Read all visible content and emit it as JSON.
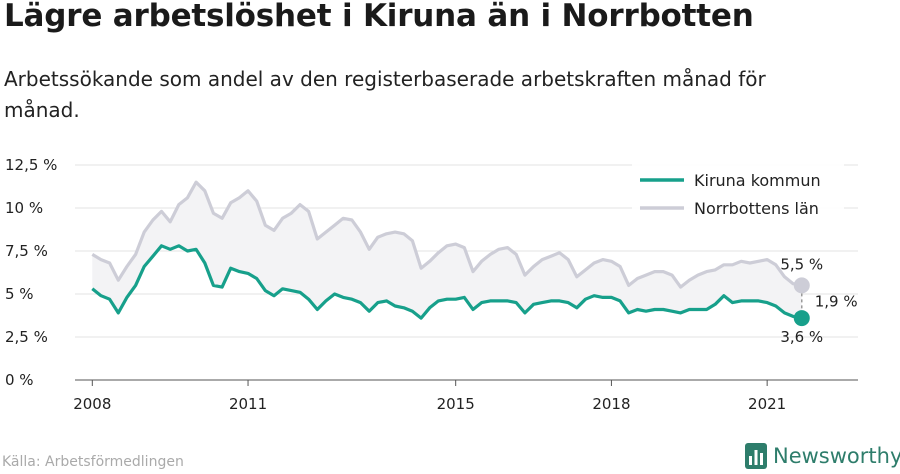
{
  "title": "Lägre arbetslöshet i Kiruna än i Norrbotten",
  "subtitle": "Arbetssökande som andel av den registerbaserade arbetskraften månad för månad.",
  "source": "Källa: Arbetsförmedlingen",
  "brand": "Newsworthy",
  "colors": {
    "kiruna": "#17a08b",
    "norrbotten": "#cdcdd7",
    "gapFill": "#f3f3f5",
    "grid": "#e3e3e3"
  },
  "chart_data": {
    "type": "line",
    "xlabel": "",
    "ylabel": "",
    "ylim": [
      0,
      12.5
    ],
    "xlim": [
      "2007-09",
      "2022-10"
    ],
    "yticks": [
      {
        "value": 0,
        "label": "0 %"
      },
      {
        "value": 2.5,
        "label": "2,5 %"
      },
      {
        "value": 5,
        "label": "5 %"
      },
      {
        "value": 7.5,
        "label": "7,5 %"
      },
      {
        "value": 10,
        "label": "10 %"
      },
      {
        "value": 12.5,
        "label": "12,5 %"
      }
    ],
    "xticks": [
      {
        "value": "2008-01",
        "label": "2008"
      },
      {
        "value": "2011-01",
        "label": "2011"
      },
      {
        "value": "2015-01",
        "label": "2015"
      },
      {
        "value": "2018-01",
        "label": "2018"
      },
      {
        "value": "2021-01",
        "label": "2021"
      }
    ],
    "grid": true,
    "legend_position": "top-right",
    "gap_label": "1,9 %",
    "series": [
      {
        "name": "Kiruna kommun",
        "end_label": "3,6 %",
        "points": [
          [
            "2008-01",
            5.3
          ],
          [
            "2008-03",
            4.9
          ],
          [
            "2008-05",
            4.7
          ],
          [
            "2008-07",
            3.9
          ],
          [
            "2008-09",
            4.8
          ],
          [
            "2008-11",
            5.5
          ],
          [
            "2009-01",
            6.6
          ],
          [
            "2009-03",
            7.2
          ],
          [
            "2009-05",
            7.8
          ],
          [
            "2009-07",
            7.6
          ],
          [
            "2009-09",
            7.8
          ],
          [
            "2009-11",
            7.5
          ],
          [
            "2010-01",
            7.6
          ],
          [
            "2010-03",
            6.8
          ],
          [
            "2010-05",
            5.5
          ],
          [
            "2010-07",
            5.4
          ],
          [
            "2010-09",
            6.5
          ],
          [
            "2010-11",
            6.3
          ],
          [
            "2011-01",
            6.2
          ],
          [
            "2011-03",
            5.9
          ],
          [
            "2011-05",
            5.2
          ],
          [
            "2011-07",
            4.9
          ],
          [
            "2011-09",
            5.3
          ],
          [
            "2011-11",
            5.2
          ],
          [
            "2012-01",
            5.1
          ],
          [
            "2012-03",
            4.7
          ],
          [
            "2012-05",
            4.1
          ],
          [
            "2012-07",
            4.6
          ],
          [
            "2012-09",
            5.0
          ],
          [
            "2012-11",
            4.8
          ],
          [
            "2013-01",
            4.7
          ],
          [
            "2013-03",
            4.5
          ],
          [
            "2013-05",
            4.0
          ],
          [
            "2013-07",
            4.5
          ],
          [
            "2013-09",
            4.6
          ],
          [
            "2013-11",
            4.3
          ],
          [
            "2014-01",
            4.2
          ],
          [
            "2014-03",
            4.0
          ],
          [
            "2014-05",
            3.6
          ],
          [
            "2014-07",
            4.2
          ],
          [
            "2014-09",
            4.6
          ],
          [
            "2014-11",
            4.7
          ],
          [
            "2015-01",
            4.7
          ],
          [
            "2015-03",
            4.8
          ],
          [
            "2015-05",
            4.1
          ],
          [
            "2015-07",
            4.5
          ],
          [
            "2015-09",
            4.6
          ],
          [
            "2015-11",
            4.6
          ],
          [
            "2016-01",
            4.6
          ],
          [
            "2016-03",
            4.5
          ],
          [
            "2016-05",
            3.9
          ],
          [
            "2016-07",
            4.4
          ],
          [
            "2016-09",
            4.5
          ],
          [
            "2016-11",
            4.6
          ],
          [
            "2017-01",
            4.6
          ],
          [
            "2017-03",
            4.5
          ],
          [
            "2017-05",
            4.2
          ],
          [
            "2017-07",
            4.7
          ],
          [
            "2017-09",
            4.9
          ],
          [
            "2017-11",
            4.8
          ],
          [
            "2018-01",
            4.8
          ],
          [
            "2018-03",
            4.6
          ],
          [
            "2018-05",
            3.9
          ],
          [
            "2018-07",
            4.1
          ],
          [
            "2018-09",
            4.0
          ],
          [
            "2018-11",
            4.1
          ],
          [
            "2019-01",
            4.1
          ],
          [
            "2019-03",
            4.0
          ],
          [
            "2019-05",
            3.9
          ],
          [
            "2019-07",
            4.1
          ],
          [
            "2019-09",
            4.1
          ],
          [
            "2019-11",
            4.1
          ],
          [
            "2020-01",
            4.4
          ],
          [
            "2020-03",
            4.9
          ],
          [
            "2020-05",
            4.5
          ],
          [
            "2020-07",
            4.6
          ],
          [
            "2020-09",
            4.6
          ],
          [
            "2020-11",
            4.6
          ],
          [
            "2021-01",
            4.5
          ],
          [
            "2021-03",
            4.3
          ],
          [
            "2021-05",
            3.9
          ],
          [
            "2021-07",
            3.7
          ],
          [
            "2021-09",
            3.6
          ]
        ]
      },
      {
        "name": "Norrbottens län",
        "end_label": "5,5 %",
        "points": [
          [
            "2008-01",
            7.3
          ],
          [
            "2008-03",
            7.0
          ],
          [
            "2008-05",
            6.8
          ],
          [
            "2008-07",
            5.8
          ],
          [
            "2008-09",
            6.6
          ],
          [
            "2008-11",
            7.3
          ],
          [
            "2009-01",
            8.6
          ],
          [
            "2009-03",
            9.3
          ],
          [
            "2009-05",
            9.8
          ],
          [
            "2009-07",
            9.2
          ],
          [
            "2009-09",
            10.2
          ],
          [
            "2009-11",
            10.6
          ],
          [
            "2010-01",
            11.5
          ],
          [
            "2010-03",
            11.0
          ],
          [
            "2010-05",
            9.7
          ],
          [
            "2010-07",
            9.4
          ],
          [
            "2010-09",
            10.3
          ],
          [
            "2010-11",
            10.6
          ],
          [
            "2011-01",
            11.0
          ],
          [
            "2011-03",
            10.4
          ],
          [
            "2011-05",
            9.0
          ],
          [
            "2011-07",
            8.7
          ],
          [
            "2011-09",
            9.4
          ],
          [
            "2011-11",
            9.7
          ],
          [
            "2012-01",
            10.2
          ],
          [
            "2012-03",
            9.8
          ],
          [
            "2012-05",
            8.2
          ],
          [
            "2012-07",
            8.6
          ],
          [
            "2012-09",
            9.0
          ],
          [
            "2012-11",
            9.4
          ],
          [
            "2013-01",
            9.3
          ],
          [
            "2013-03",
            8.6
          ],
          [
            "2013-05",
            7.6
          ],
          [
            "2013-07",
            8.3
          ],
          [
            "2013-09",
            8.5
          ],
          [
            "2013-11",
            8.6
          ],
          [
            "2014-01",
            8.5
          ],
          [
            "2014-03",
            8.1
          ],
          [
            "2014-05",
            6.5
          ],
          [
            "2014-07",
            6.9
          ],
          [
            "2014-09",
            7.4
          ],
          [
            "2014-11",
            7.8
          ],
          [
            "2015-01",
            7.9
          ],
          [
            "2015-03",
            7.7
          ],
          [
            "2015-05",
            6.3
          ],
          [
            "2015-07",
            6.9
          ],
          [
            "2015-09",
            7.3
          ],
          [
            "2015-11",
            7.6
          ],
          [
            "2016-01",
            7.7
          ],
          [
            "2016-03",
            7.3
          ],
          [
            "2016-05",
            6.1
          ],
          [
            "2016-07",
            6.6
          ],
          [
            "2016-09",
            7.0
          ],
          [
            "2016-11",
            7.2
          ],
          [
            "2017-01",
            7.4
          ],
          [
            "2017-03",
            7.0
          ],
          [
            "2017-05",
            6.0
          ],
          [
            "2017-07",
            6.4
          ],
          [
            "2017-09",
            6.8
          ],
          [
            "2017-11",
            7.0
          ],
          [
            "2018-01",
            6.9
          ],
          [
            "2018-03",
            6.6
          ],
          [
            "2018-05",
            5.5
          ],
          [
            "2018-07",
            5.9
          ],
          [
            "2018-09",
            6.1
          ],
          [
            "2018-11",
            6.3
          ],
          [
            "2019-01",
            6.3
          ],
          [
            "2019-03",
            6.1
          ],
          [
            "2019-05",
            5.4
          ],
          [
            "2019-07",
            5.8
          ],
          [
            "2019-09",
            6.1
          ],
          [
            "2019-11",
            6.3
          ],
          [
            "2020-01",
            6.4
          ],
          [
            "2020-03",
            6.7
          ],
          [
            "2020-05",
            6.7
          ],
          [
            "2020-07",
            6.9
          ],
          [
            "2020-09",
            6.8
          ],
          [
            "2020-11",
            6.9
          ],
          [
            "2021-01",
            7.0
          ],
          [
            "2021-03",
            6.7
          ],
          [
            "2021-05",
            6.0
          ],
          [
            "2021-07",
            5.6
          ],
          [
            "2021-09",
            5.5
          ]
        ]
      }
    ]
  }
}
